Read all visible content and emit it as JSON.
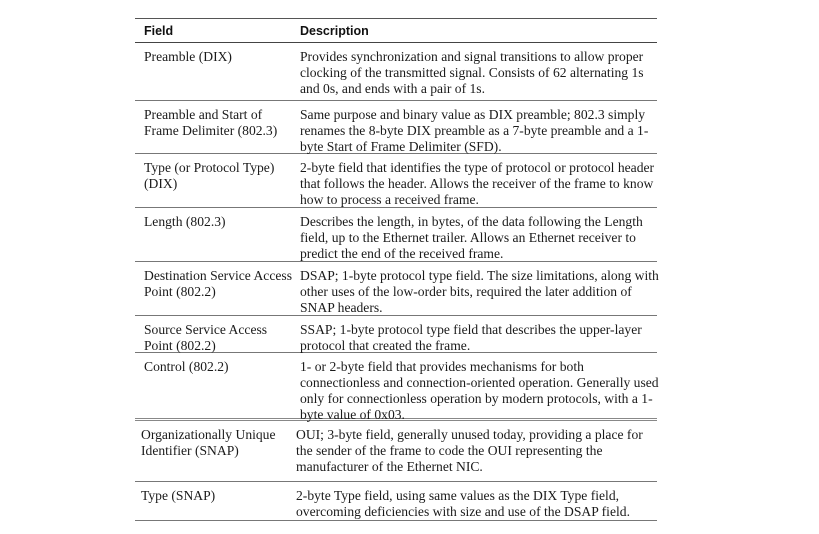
{
  "table": {
    "headers": {
      "field": "Field",
      "description": "Description"
    },
    "rows": [
      {
        "field": "Preamble (DIX)",
        "description": "Provides synchronization and signal transitions to allow proper clocking of the transmitted signal. Consists of 62 alternating 1s and 0s, and ends with a pair of 1s."
      },
      {
        "field": "Preamble and Start of Frame Delimiter (802.3)",
        "description": "Same purpose and binary value as DIX preamble; 802.3 simply renames the 8-byte DIX preamble as a 7-byte preamble and a 1-byte Start of Frame Delimiter (SFD)."
      },
      {
        "field": "Type (or Protocol Type) (DIX)",
        "description": "2-byte field that identifies the type of protocol or protocol header that follows the header. Allows the receiver of the frame to know how to process a received frame."
      },
      {
        "field": "Length (802.3)",
        "description": "Describes the length, in bytes, of the data following the Length field, up to the Ethernet trailer. Allows an Ethernet receiver to predict the end of the received frame."
      },
      {
        "field": "Destination Service Access Point (802.2)",
        "description": "DSAP; 1-byte protocol type field. The size limitations, along with other uses of the low-order bits, required the later addition of SNAP headers."
      },
      {
        "field": "Source Service Access Point (802.2)",
        "description": "SSAP; 1-byte protocol type field that describes the upper-layer protocol that created the frame."
      },
      {
        "field": "Control (802.2)",
        "description": "1- or 2-byte field that provides mechanisms for both connectionless and connection-oriented operation. Generally used only for connectionless operation by modern protocols, with a 1-byte value of 0x03."
      },
      {
        "field": "Organizationally Unique Identifier (SNAP)",
        "description": "OUI; 3-byte field, generally unused today, providing a place for the sender of the frame to code the OUI representing the manufacturer of the Ethernet NIC."
      },
      {
        "field": "Type (SNAP)",
        "description": "2-byte Type field, using same values as the DIX Type field, overcoming deficiencies with size and use of the DSAP field."
      }
    ]
  }
}
